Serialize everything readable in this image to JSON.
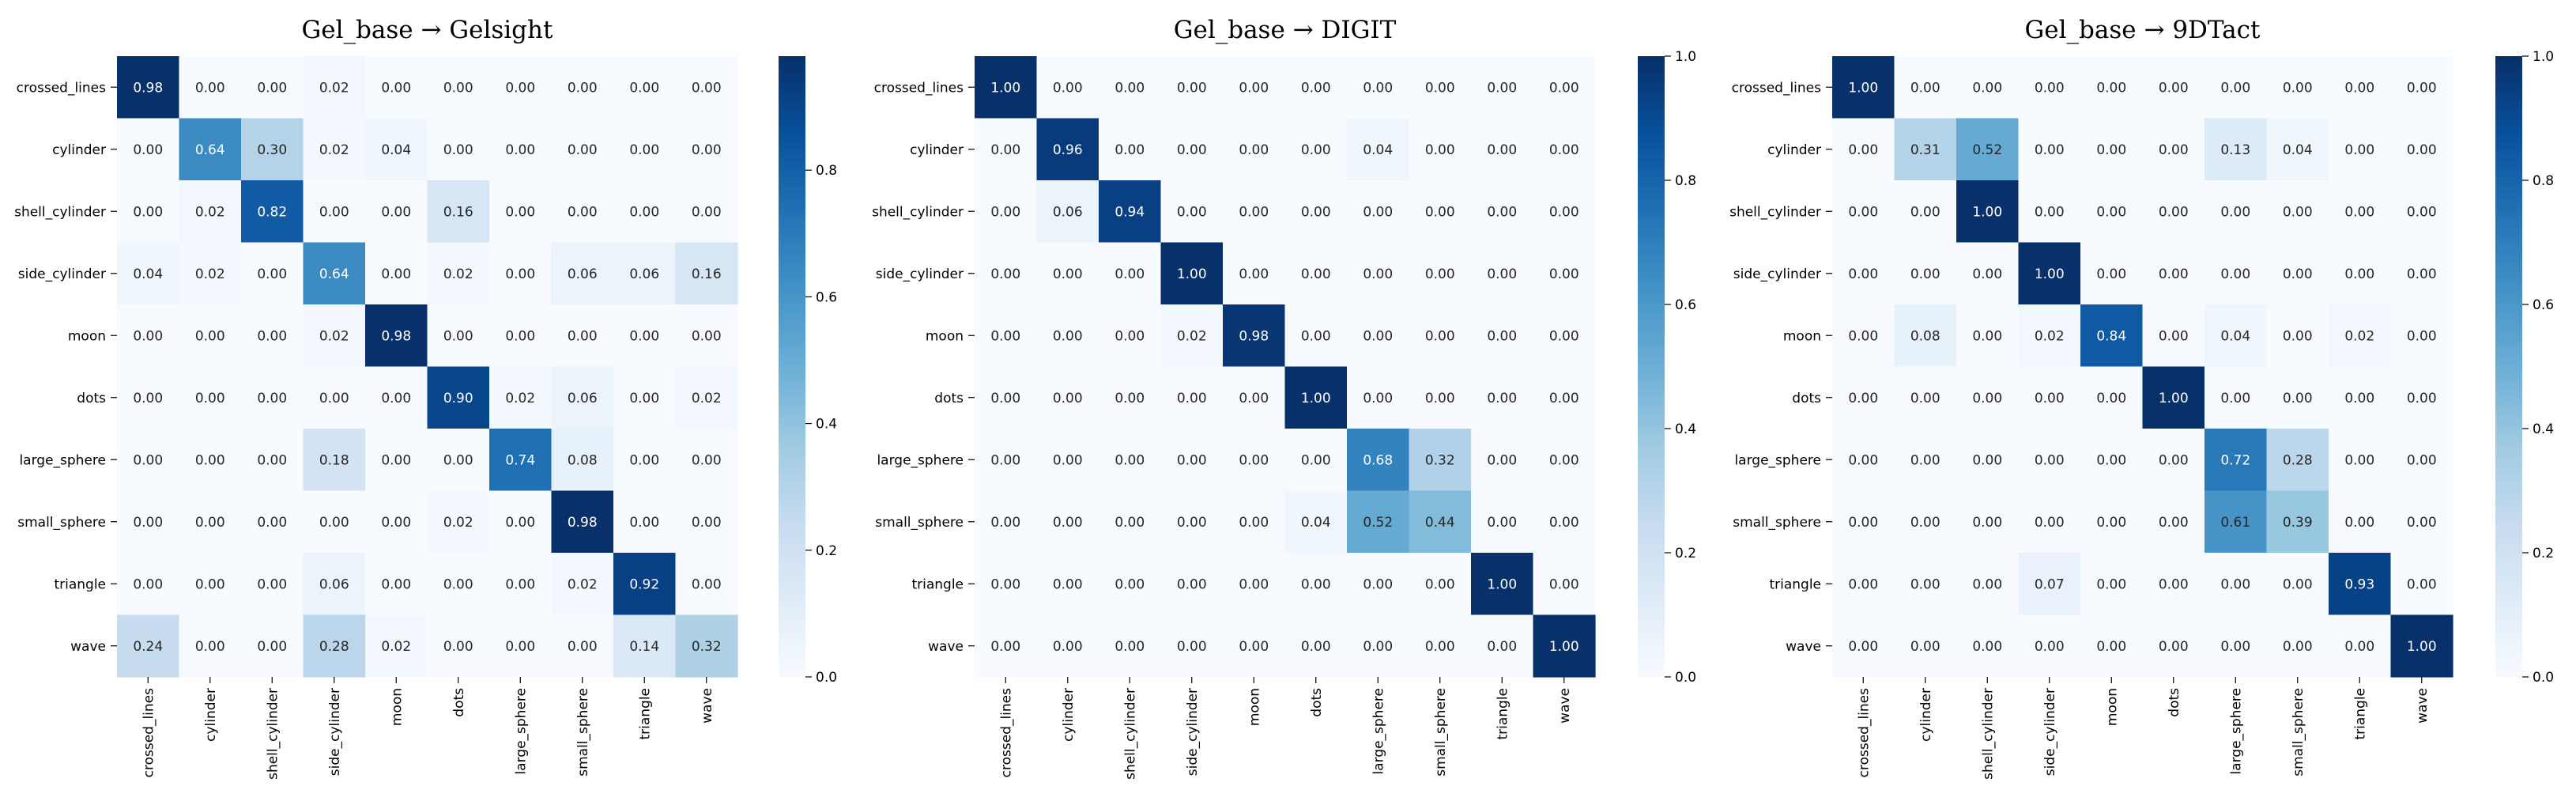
{
  "chart_data": [
    {
      "type": "heatmap",
      "title": "Gel_base → Gelsight",
      "rows": [
        "crossed_lines",
        "cylinder",
        "shell_cylinder",
        "side_cylinder",
        "moon",
        "dots",
        "large_sphere",
        "small_sphere",
        "triangle",
        "wave"
      ],
      "cols": [
        "crossed_lines",
        "cylinder",
        "shell_cylinder",
        "side_cylinder",
        "moon",
        "dots",
        "large_sphere",
        "small_sphere",
        "triangle",
        "wave"
      ],
      "values": [
        [
          0.98,
          0.0,
          0.0,
          0.02,
          0.0,
          0.0,
          0.0,
          0.0,
          0.0,
          0.0
        ],
        [
          0.0,
          0.64,
          0.3,
          0.02,
          0.04,
          0.0,
          0.0,
          0.0,
          0.0,
          0.0
        ],
        [
          0.0,
          0.02,
          0.82,
          0.0,
          0.0,
          0.16,
          0.0,
          0.0,
          0.0,
          0.0
        ],
        [
          0.04,
          0.02,
          0.0,
          0.64,
          0.0,
          0.02,
          0.0,
          0.06,
          0.06,
          0.16
        ],
        [
          0.0,
          0.0,
          0.0,
          0.02,
          0.98,
          0.0,
          0.0,
          0.0,
          0.0,
          0.0
        ],
        [
          0.0,
          0.0,
          0.0,
          0.0,
          0.0,
          0.9,
          0.02,
          0.06,
          0.0,
          0.02
        ],
        [
          0.0,
          0.0,
          0.0,
          0.18,
          0.0,
          0.0,
          0.74,
          0.08,
          0.0,
          0.0
        ],
        [
          0.0,
          0.0,
          0.0,
          0.0,
          0.0,
          0.02,
          0.0,
          0.98,
          0.0,
          0.0
        ],
        [
          0.0,
          0.0,
          0.0,
          0.06,
          0.0,
          0.0,
          0.0,
          0.02,
          0.92,
          0.0
        ],
        [
          0.24,
          0.0,
          0.0,
          0.28,
          0.02,
          0.0,
          0.0,
          0.0,
          0.14,
          0.32
        ]
      ],
      "colorbar": {
        "vmin": 0.0,
        "vmax": 0.98,
        "ticks": [
          0.0,
          0.2,
          0.4,
          0.6,
          0.8
        ],
        "tick_labels": [
          "0.0",
          "0.2",
          "0.4",
          "0.6",
          "0.8"
        ]
      },
      "colormap": "Blues",
      "color_stops": [
        "#f7fbff",
        "#deebf7",
        "#c6dbef",
        "#9ecae1",
        "#6baed6",
        "#4292c6",
        "#2171b5",
        "#08519c",
        "#08306b"
      ]
    },
    {
      "type": "heatmap",
      "title": "Gel_base → DIGIT",
      "rows": [
        "crossed_lines",
        "cylinder",
        "shell_cylinder",
        "side_cylinder",
        "moon",
        "dots",
        "large_sphere",
        "small_sphere",
        "triangle",
        "wave"
      ],
      "cols": [
        "crossed_lines",
        "cylinder",
        "shell_cylinder",
        "side_cylinder",
        "moon",
        "dots",
        "large_sphere",
        "small_sphere",
        "triangle",
        "wave"
      ],
      "values": [
        [
          1.0,
          0.0,
          0.0,
          0.0,
          0.0,
          0.0,
          0.0,
          0.0,
          0.0,
          0.0
        ],
        [
          0.0,
          0.96,
          0.0,
          0.0,
          0.0,
          0.0,
          0.04,
          0.0,
          0.0,
          0.0
        ],
        [
          0.0,
          0.06,
          0.94,
          0.0,
          0.0,
          0.0,
          0.0,
          0.0,
          0.0,
          0.0
        ],
        [
          0.0,
          0.0,
          0.0,
          1.0,
          0.0,
          0.0,
          0.0,
          0.0,
          0.0,
          0.0
        ],
        [
          0.0,
          0.0,
          0.0,
          0.02,
          0.98,
          0.0,
          0.0,
          0.0,
          0.0,
          0.0
        ],
        [
          0.0,
          0.0,
          0.0,
          0.0,
          0.0,
          1.0,
          0.0,
          0.0,
          0.0,
          0.0
        ],
        [
          0.0,
          0.0,
          0.0,
          0.0,
          0.0,
          0.0,
          0.68,
          0.32,
          0.0,
          0.0
        ],
        [
          0.0,
          0.0,
          0.0,
          0.0,
          0.0,
          0.04,
          0.52,
          0.44,
          0.0,
          0.0
        ],
        [
          0.0,
          0.0,
          0.0,
          0.0,
          0.0,
          0.0,
          0.0,
          0.0,
          1.0,
          0.0
        ],
        [
          0.0,
          0.0,
          0.0,
          0.0,
          0.0,
          0.0,
          0.0,
          0.0,
          0.0,
          1.0
        ]
      ],
      "colorbar": {
        "vmin": 0.0,
        "vmax": 1.0,
        "ticks": [
          0.0,
          0.2,
          0.4,
          0.6,
          0.8,
          1.0
        ],
        "tick_labels": [
          "0.0",
          "0.2",
          "0.4",
          "0.6",
          "0.8",
          "1.0"
        ]
      },
      "colormap": "Blues",
      "color_stops": [
        "#f7fbff",
        "#deebf7",
        "#c6dbef",
        "#9ecae1",
        "#6baed6",
        "#4292c6",
        "#2171b5",
        "#08519c",
        "#08306b"
      ]
    },
    {
      "type": "heatmap",
      "title": "Gel_base → 9DTact",
      "rows": [
        "crossed_lines",
        "cylinder",
        "shell_cylinder",
        "side_cylinder",
        "moon",
        "dots",
        "large_sphere",
        "small_sphere",
        "triangle",
        "wave"
      ],
      "cols": [
        "crossed_lines",
        "cylinder",
        "shell_cylinder",
        "side_cylinder",
        "moon",
        "dots",
        "large_sphere",
        "small_sphere",
        "triangle",
        "wave"
      ],
      "values": [
        [
          1.0,
          0.0,
          0.0,
          0.0,
          0.0,
          0.0,
          0.0,
          0.0,
          0.0,
          0.0
        ],
        [
          0.0,
          0.31,
          0.52,
          0.0,
          0.0,
          0.0,
          0.13,
          0.04,
          0.0,
          0.0
        ],
        [
          0.0,
          0.0,
          1.0,
          0.0,
          0.0,
          0.0,
          0.0,
          0.0,
          0.0,
          0.0
        ],
        [
          0.0,
          0.0,
          0.0,
          1.0,
          0.0,
          0.0,
          0.0,
          0.0,
          0.0,
          0.0
        ],
        [
          0.0,
          0.08,
          0.0,
          0.02,
          0.84,
          0.0,
          0.04,
          0.0,
          0.02,
          0.0
        ],
        [
          0.0,
          0.0,
          0.0,
          0.0,
          0.0,
          1.0,
          0.0,
          0.0,
          0.0,
          0.0
        ],
        [
          0.0,
          0.0,
          0.0,
          0.0,
          0.0,
          0.0,
          0.72,
          0.28,
          0.0,
          0.0
        ],
        [
          0.0,
          0.0,
          0.0,
          0.0,
          0.0,
          0.0,
          0.61,
          0.39,
          0.0,
          0.0
        ],
        [
          0.0,
          0.0,
          0.0,
          0.07,
          0.0,
          0.0,
          0.0,
          0.0,
          0.93,
          0.0
        ],
        [
          0.0,
          0.0,
          0.0,
          0.0,
          0.0,
          0.0,
          0.0,
          0.0,
          0.0,
          1.0
        ]
      ],
      "colorbar": {
        "vmin": 0.0,
        "vmax": 1.0,
        "ticks": [
          0.0,
          0.2,
          0.4,
          0.6,
          0.8,
          1.0
        ],
        "tick_labels": [
          "0.0",
          "0.2",
          "0.4",
          "0.6",
          "0.8",
          "1.0"
        ]
      },
      "colormap": "Blues",
      "color_stops": [
        "#f7fbff",
        "#deebf7",
        "#c6dbef",
        "#9ecae1",
        "#6baed6",
        "#4292c6",
        "#2171b5",
        "#08519c",
        "#08306b"
      ]
    }
  ]
}
